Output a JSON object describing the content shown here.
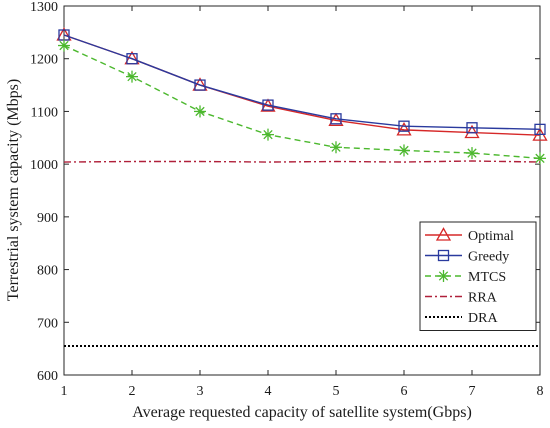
{
  "chart_data": {
    "type": "line",
    "title": "",
    "xlabel": "Average requested capacity of satellite system(Gbps)",
    "ylabel": "Terrestrial system capacity (Mbps)",
    "xlim": [
      1,
      8
    ],
    "ylim": [
      600,
      1300
    ],
    "x_ticks": [
      "1",
      "2",
      "3",
      "4",
      "5",
      "6",
      "7",
      "8"
    ],
    "y_ticks": [
      "600",
      "700",
      "800",
      "900",
      "1000",
      "1100",
      "1200",
      "1300"
    ],
    "grid": false,
    "legend_position": "lower-right",
    "x": [
      1,
      2,
      3,
      4,
      5,
      6,
      7,
      8
    ],
    "series": [
      {
        "name": "Optimal",
        "color": "#d62828",
        "marker": "triangle",
        "dash": "solid",
        "values": [
          1245,
          1200,
          1150,
          1110,
          1083,
          1065,
          1060,
          1055
        ]
      },
      {
        "name": "Greedy",
        "color": "#2a3a9e",
        "marker": "square",
        "dash": "solid",
        "values": [
          1245,
          1200,
          1150,
          1112,
          1086,
          1072,
          1069,
          1066
        ]
      },
      {
        "name": "MTCS",
        "color": "#4cb82e",
        "marker": "asterisk",
        "dash": "dashed",
        "values": [
          1225,
          1166,
          1100,
          1056,
          1032,
          1026,
          1021,
          1011
        ]
      },
      {
        "name": "RRA",
        "color": "#b0203a",
        "marker": "none",
        "dash": "dashdot",
        "values": [
          1004,
          1005,
          1005,
          1004,
          1005,
          1004,
          1006,
          1004
        ]
      },
      {
        "name": "DRA",
        "color": "#000000",
        "marker": "none",
        "dash": "dotted",
        "values": [
          655,
          655,
          655,
          655,
          655,
          655,
          655,
          655
        ]
      }
    ]
  }
}
